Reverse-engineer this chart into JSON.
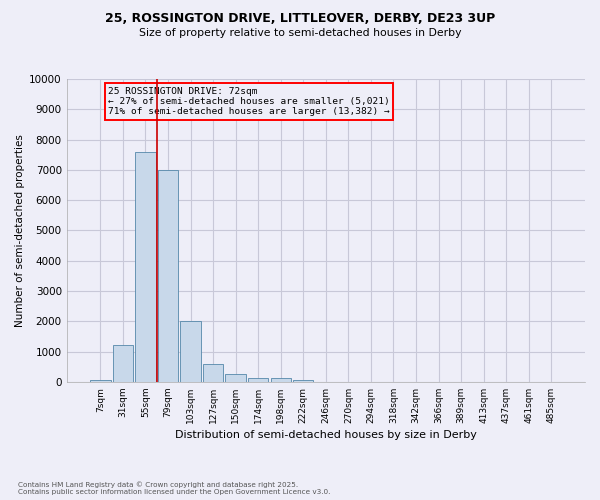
{
  "title_line1": "25, ROSSINGTON DRIVE, LITTLEOVER, DERBY, DE23 3UP",
  "title_line2": "Size of property relative to semi-detached houses in Derby",
  "xlabel": "Distribution of semi-detached houses by size in Derby",
  "ylabel": "Number of semi-detached properties",
  "categories": [
    "7sqm",
    "31sqm",
    "55sqm",
    "79sqm",
    "103sqm",
    "127sqm",
    "150sqm",
    "174sqm",
    "198sqm",
    "222sqm",
    "246sqm",
    "270sqm",
    "294sqm",
    "318sqm",
    "342sqm",
    "366sqm",
    "389sqm",
    "413sqm",
    "437sqm",
    "461sqm",
    "485sqm"
  ],
  "values": [
    60,
    1230,
    7600,
    7000,
    2020,
    600,
    270,
    130,
    110,
    60,
    0,
    0,
    0,
    0,
    0,
    0,
    0,
    0,
    0,
    0,
    0
  ],
  "bar_color": "#c8d8ea",
  "bar_edge_color": "#5588aa",
  "vline_color": "#cc0000",
  "vline_x_index": 2.5,
  "annotation_title": "25 ROSSINGTON DRIVE: 72sqm",
  "annotation_line1": "← 27% of semi-detached houses are smaller (5,021)",
  "annotation_line2": "71% of semi-detached houses are larger (13,382) →",
  "annotation_box_color": "red",
  "ylim": [
    0,
    10000
  ],
  "yticks": [
    0,
    1000,
    2000,
    3000,
    4000,
    5000,
    6000,
    7000,
    8000,
    9000,
    10000
  ],
  "grid_color": "#c8c8d8",
  "bg_color": "#eeeef8",
  "footer_line1": "Contains HM Land Registry data © Crown copyright and database right 2025.",
  "footer_line2": "Contains public sector information licensed under the Open Government Licence v3.0."
}
